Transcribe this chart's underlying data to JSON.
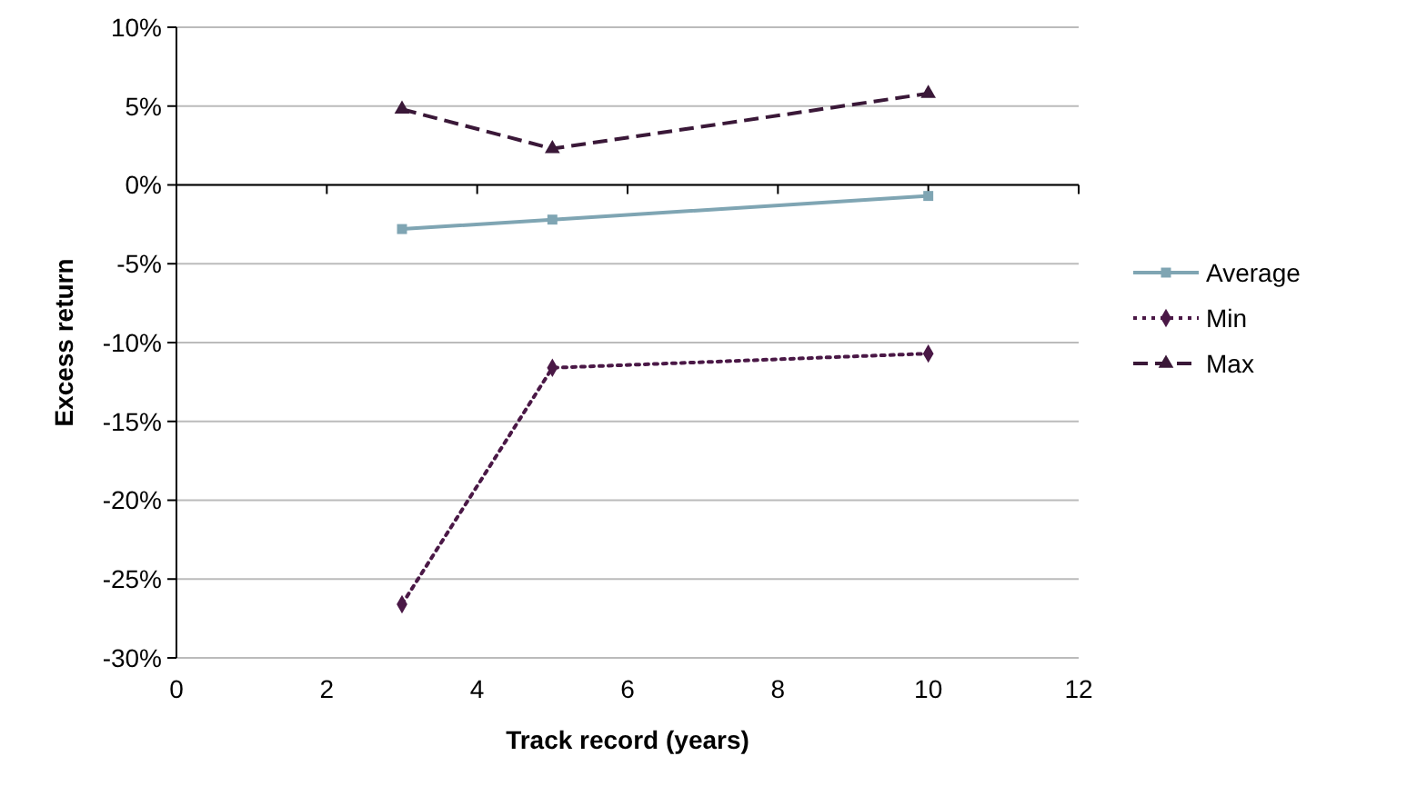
{
  "chart_data": {
    "type": "line",
    "xlabel": "Track record (years)",
    "ylabel": "Excess return",
    "xlim": [
      0,
      12
    ],
    "xticks": [
      0,
      2,
      4,
      6,
      8,
      10,
      12
    ],
    "ylim": [
      -0.3,
      0.1
    ],
    "yticks": [
      {
        "value": -0.3,
        "label": "-30%"
      },
      {
        "value": -0.25,
        "label": "-25%"
      },
      {
        "value": -0.2,
        "label": "-20%"
      },
      {
        "value": -0.15,
        "label": "-15%"
      },
      {
        "value": -0.1,
        "label": "-10%"
      },
      {
        "value": -0.05,
        "label": "-5%"
      },
      {
        "value": 0,
        "label": "0%"
      },
      {
        "value": 0.05,
        "label": "5%"
      },
      {
        "value": 0.1,
        "label": "10%"
      }
    ],
    "grid": "y",
    "legend": "right",
    "x": [
      3,
      5,
      10
    ],
    "series": [
      {
        "name": "Average",
        "color": "#7fa5b3",
        "values": [
          -0.028,
          -0.022,
          -0.007
        ],
        "marker": "square",
        "line_style": "solid"
      },
      {
        "name": "Min",
        "color": "#4a1846",
        "values": [
          -0.266,
          -0.116,
          -0.107
        ],
        "marker": "diamond",
        "line_style": "dotted"
      },
      {
        "name": "Max",
        "color": "#3a1838",
        "values": [
          0.048,
          0.023,
          0.058
        ],
        "marker": "triangle",
        "line_style": "dashed"
      }
    ]
  }
}
